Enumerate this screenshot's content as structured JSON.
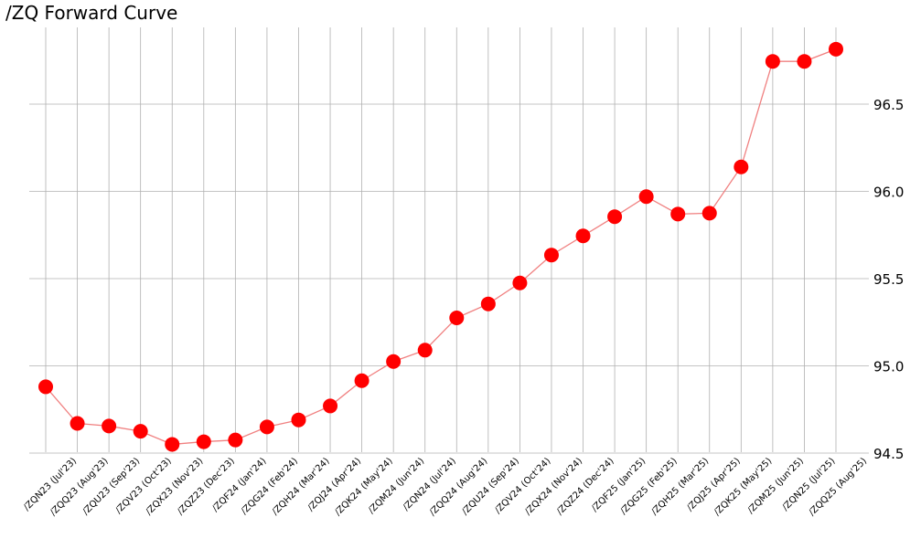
{
  "chart_data": {
    "type": "line",
    "title": "/ZQ Forward Curve",
    "xlabel": "",
    "ylabel": "",
    "categories": [
      "/ZQN23 (Jul'23)",
      "/ZQQ23 (Aug'23)",
      "/ZQU23 (Sep'23)",
      "/ZQV23 (Oct'23)",
      "/ZQX23 (Nov'23)",
      "/ZQZ23 (Dec'23)",
      "/ZQF24 (Jan'24)",
      "/ZQG24 (Feb'24)",
      "/ZQH24 (Mar'24)",
      "/ZQJ24 (Apr'24)",
      "/ZQK24 (May'24)",
      "/ZQM24 (Jun'24)",
      "/ZQN24 (Jul'24)",
      "/ZQQ24 (Aug'24)",
      "/ZQU24 (Sep'24)",
      "/ZQV24 (Oct'24)",
      "/ZQX24 (Nov'24)",
      "/ZQZ24 (Dec'24)",
      "/ZQF25 (Jan'25)",
      "/ZQG25 (Feb'25)",
      "/ZQH25 (Mar'25)",
      "/ZQJ25 (Apr'25)",
      "/ZQK25 (May'25)",
      "/ZQM25 (Jun'25)",
      "/ZQN25 (Jul'25)",
      "/ZQQ25 (Aug'25)"
    ],
    "series": [
      {
        "values": [
          94.88,
          94.67,
          94.655,
          94.625,
          94.55,
          94.565,
          94.575,
          94.65,
          94.69,
          94.77,
          94.915,
          95.025,
          95.09,
          95.275,
          95.355,
          95.475,
          95.635,
          95.745,
          95.855,
          95.97,
          95.87,
          95.875,
          96.14,
          96.745,
          96.745,
          96.815
        ]
      }
    ],
    "yticks": [
      "94.5",
      "95.0",
      "95.5",
      "96.0",
      "96.5"
    ],
    "ylim": [
      94.47,
      96.9
    ],
    "grid": true,
    "y_axis_side": "right",
    "colors": {
      "line": "#f08080",
      "marker": "#ff0000",
      "grid": "#b0b0b0"
    }
  }
}
